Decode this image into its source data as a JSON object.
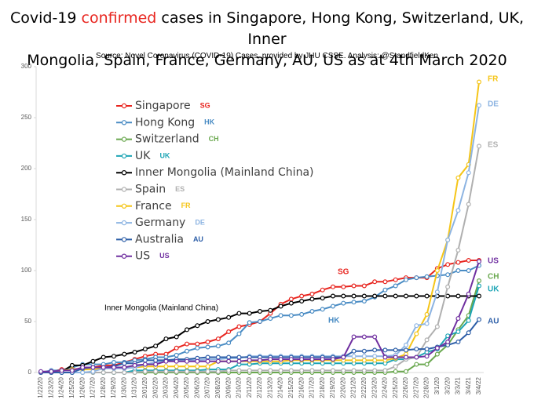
{
  "chart_data": {
    "type": "line",
    "title": [
      "Covid-19",
      "confirmed",
      "cases in Singapore, Hong Kong, Switzerland, UK, Inner",
      "Mongolia, Spain, France, Germany, AU, US as at 4th March 2020"
    ],
    "subtitle": "Source: Novel Coronavirus (COVID-19) Cases, provided by JHU CSSE.  Analysis: @StandfieldKen",
    "categories": [
      "1/22/20",
      "1/23/20",
      "1/24/20",
      "1/25/20",
      "1/26/20",
      "1/27/20",
      "1/28/20",
      "1/29/20",
      "1/30/20",
      "1/31/20",
      "2/01/20",
      "2/02/20",
      "2/03/20",
      "2/04/20",
      "2/05/20",
      "2/06/20",
      "2/07/20",
      "2/08/20",
      "2/09/20",
      "2/10/20",
      "2/11/20",
      "2/12/20",
      "2/13/20",
      "2/14/20",
      "2/15/20",
      "2/16/20",
      "2/17/20",
      "2/18/20",
      "2/19/20",
      "2/20/20",
      "2/21/20",
      "2/22/20",
      "2/23/20",
      "2/24/20",
      "2/25/20",
      "2/26/20",
      "2/27/20",
      "2/28/20",
      "3/1/20",
      "3/2/20",
      "3/3/21",
      "3/4/21",
      "3/4/22"
    ],
    "ylim": [
      0,
      300
    ],
    "yticks": [
      0,
      50,
      100,
      150,
      200,
      250,
      300
    ],
    "grid": false,
    "series": [
      {
        "name": "Singapore",
        "label": "SG",
        "color": "#e8251f",
        "values": [
          0,
          1,
          3,
          3,
          4,
          5,
          7,
          7,
          10,
          13,
          16,
          18,
          18,
          24,
          28,
          28,
          30,
          33,
          40,
          45,
          47,
          50,
          58,
          67,
          72,
          75,
          77,
          81,
          84,
          84,
          85,
          85,
          89,
          89,
          91,
          93,
          93,
          93,
          102,
          106,
          108,
          110,
          110
        ]
      },
      {
        "name": "Hong Kong",
        "label": "HK",
        "color": "#4a8cc4",
        "values": [
          0,
          2,
          2,
          5,
          8,
          8,
          8,
          10,
          10,
          12,
          13,
          15,
          15,
          17,
          21,
          24,
          25,
          26,
          29,
          38,
          49,
          50,
          53,
          56,
          56,
          57,
          60,
          62,
          65,
          68,
          69,
          70,
          74,
          81,
          85,
          91,
          93,
          94,
          95,
          96,
          100,
          100,
          105
        ]
      },
      {
        "name": "Switzerland",
        "label": "CH",
        "color": "#6aa84f",
        "values": [
          0,
          0,
          0,
          0,
          0,
          0,
          0,
          0,
          0,
          0,
          0,
          0,
          0,
          0,
          0,
          0,
          0,
          0,
          0,
          0,
          0,
          0,
          0,
          0,
          0,
          0,
          0,
          0,
          0,
          0,
          0,
          0,
          0,
          0,
          1,
          1,
          8,
          8,
          18,
          27,
          42,
          56,
          90
        ]
      },
      {
        "name": "UK",
        "label": "UK",
        "color": "#1ea5b5",
        "values": [
          0,
          0,
          0,
          0,
          0,
          0,
          0,
          0,
          0,
          2,
          2,
          2,
          2,
          2,
          2,
          2,
          3,
          3,
          3,
          8,
          8,
          9,
          9,
          9,
          9,
          9,
          9,
          9,
          9,
          9,
          9,
          9,
          9,
          9,
          13,
          13,
          15,
          20,
          23,
          36,
          40,
          51,
          85
        ]
      },
      {
        "name": "Inner Mongolia (Mainland China)",
        "color": "#000000",
        "values": [
          0,
          0,
          1,
          7,
          7,
          11,
          15,
          16,
          18,
          20,
          23,
          26,
          33,
          35,
          42,
          46,
          50,
          52,
          54,
          58,
          58,
          60,
          61,
          65,
          68,
          70,
          72,
          73,
          75,
          75,
          75,
          75,
          75,
          75,
          75,
          75,
          75,
          75,
          75,
          75,
          75,
          75,
          75
        ]
      },
      {
        "name": "Spain",
        "label": "ES",
        "color": "#b0b0b0",
        "values": [
          0,
          0,
          0,
          0,
          0,
          0,
          0,
          0,
          0,
          0,
          1,
          1,
          1,
          1,
          1,
          1,
          1,
          1,
          2,
          2,
          2,
          2,
          2,
          2,
          2,
          2,
          2,
          2,
          2,
          2,
          2,
          2,
          2,
          2,
          6,
          13,
          15,
          32,
          45,
          84,
          120,
          165,
          222
        ]
      },
      {
        "name": "France",
        "label": "FR",
        "color": "#f5c518",
        "values": [
          0,
          0,
          2,
          3,
          3,
          3,
          4,
          5,
          5,
          5,
          6,
          6,
          6,
          6,
          6,
          6,
          6,
          11,
          11,
          11,
          11,
          11,
          11,
          11,
          12,
          12,
          12,
          12,
          12,
          12,
          12,
          12,
          12,
          12,
          14,
          18,
          38,
          57,
          100,
          130,
          191,
          204,
          285
        ]
      },
      {
        "name": "Germany",
        "label": "DE",
        "color": "#8db4e2",
        "values": [
          0,
          0,
          0,
          0,
          0,
          1,
          4,
          4,
          4,
          5,
          8,
          10,
          12,
          12,
          12,
          12,
          13,
          13,
          14,
          14,
          16,
          16,
          16,
          16,
          16,
          16,
          16,
          16,
          16,
          16,
          16,
          16,
          16,
          16,
          17,
          27,
          46,
          48,
          79,
          130,
          159,
          196,
          262
        ]
      },
      {
        "name": "Australia",
        "label": "AU",
        "color": "#2e5fa8",
        "values": [
          0,
          0,
          0,
          0,
          4,
          5,
          5,
          6,
          9,
          9,
          12,
          12,
          12,
          13,
          13,
          14,
          15,
          15,
          15,
          15,
          15,
          15,
          15,
          15,
          15,
          15,
          15,
          15,
          15,
          15,
          21,
          21,
          22,
          22,
          22,
          22,
          23,
          23,
          25,
          27,
          30,
          39,
          52
        ]
      },
      {
        "name": "US",
        "label": "US",
        "color": "#7030a0",
        "values": [
          1,
          1,
          2,
          2,
          5,
          5,
          5,
          5,
          5,
          7,
          8,
          8,
          11,
          11,
          11,
          11,
          11,
          11,
          11,
          11,
          12,
          12,
          13,
          13,
          13,
          13,
          13,
          13,
          13,
          15,
          35,
          35,
          35,
          15,
          15,
          15,
          15,
          16,
          24,
          30,
          53,
          77,
          109
        ]
      }
    ]
  }
}
